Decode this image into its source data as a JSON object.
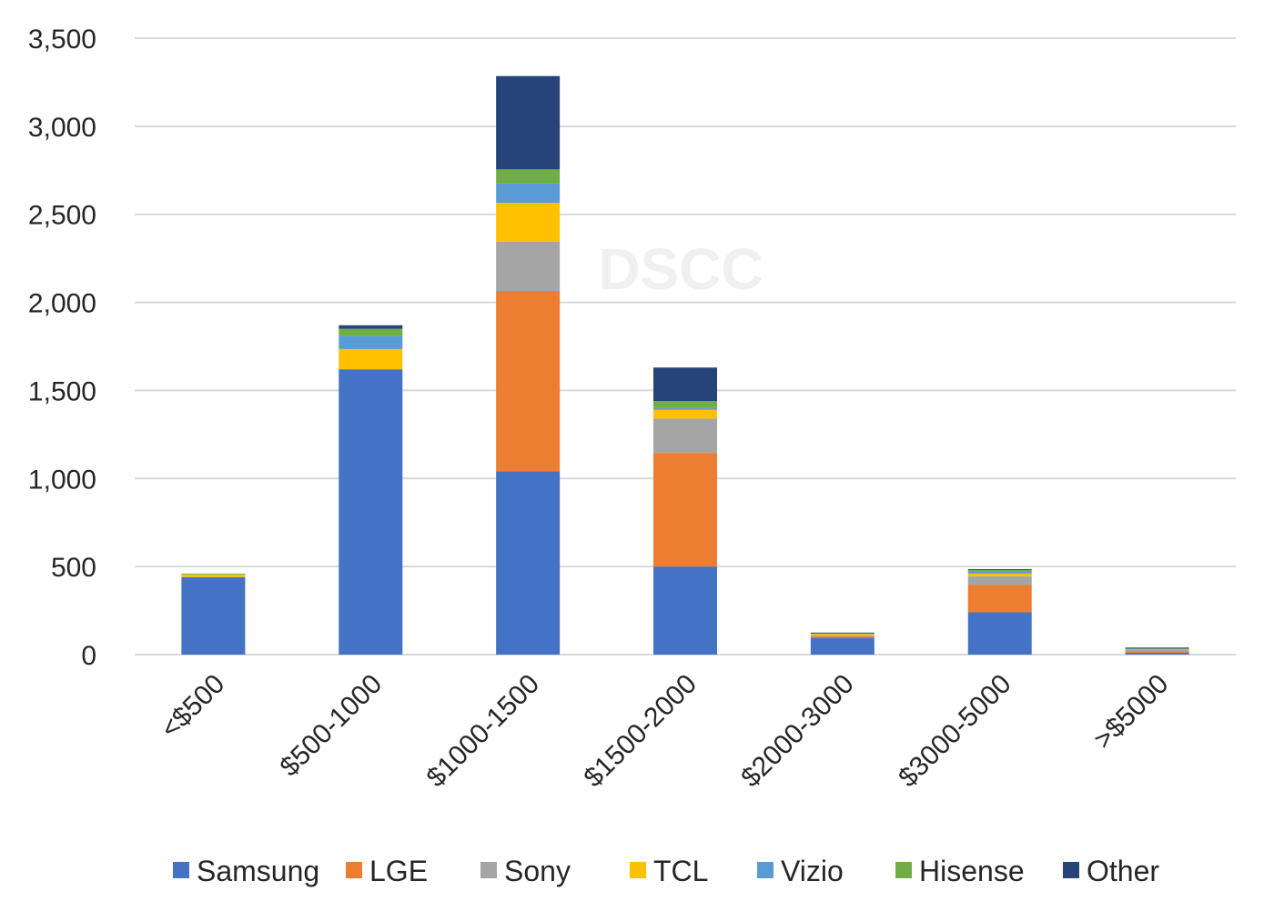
{
  "watermark": "DSCC",
  "chart_data": {
    "type": "bar",
    "stacked": true,
    "title": "",
    "xlabel": "",
    "ylabel": "",
    "ylim": [
      0,
      3500
    ],
    "yticks": [
      0,
      500,
      1000,
      1500,
      2000,
      2500,
      3000,
      3500
    ],
    "ytick_labels": [
      "0",
      "500",
      "1,000",
      "1,500",
      "2,000",
      "2,500",
      "3,000",
      "3,500"
    ],
    "grid": "horizontal",
    "legend_position": "bottom",
    "categories": [
      "<$500",
      "$500-1000",
      "$1000-1500",
      "$1500-2000",
      "$2000-3000",
      "$3000-5000",
      ">$5000"
    ],
    "series": [
      {
        "name": "Samsung",
        "color": "#4472C4",
        "values": [
          440,
          1620,
          1040,
          500,
          95,
          240,
          10
        ]
      },
      {
        "name": "LGE",
        "color": "#ED7D31",
        "values": [
          0,
          0,
          1025,
          645,
          10,
          155,
          10
        ]
      },
      {
        "name": "Sony",
        "color": "#A5A5A5",
        "values": [
          0,
          0,
          280,
          195,
          5,
          50,
          10
        ]
      },
      {
        "name": "TCL",
        "color": "#FFC000",
        "values": [
          15,
          115,
          220,
          50,
          8,
          15,
          2
        ]
      },
      {
        "name": "Vizio",
        "color": "#5B9BD5",
        "values": [
          0,
          75,
          110,
          10,
          0,
          10,
          0
        ]
      },
      {
        "name": "Hisense",
        "color": "#70AD47",
        "values": [
          5,
          40,
          80,
          40,
          2,
          10,
          2
        ]
      },
      {
        "name": "Other",
        "color": "#264478",
        "values": [
          0,
          20,
          530,
          190,
          5,
          5,
          6
        ]
      }
    ]
  }
}
